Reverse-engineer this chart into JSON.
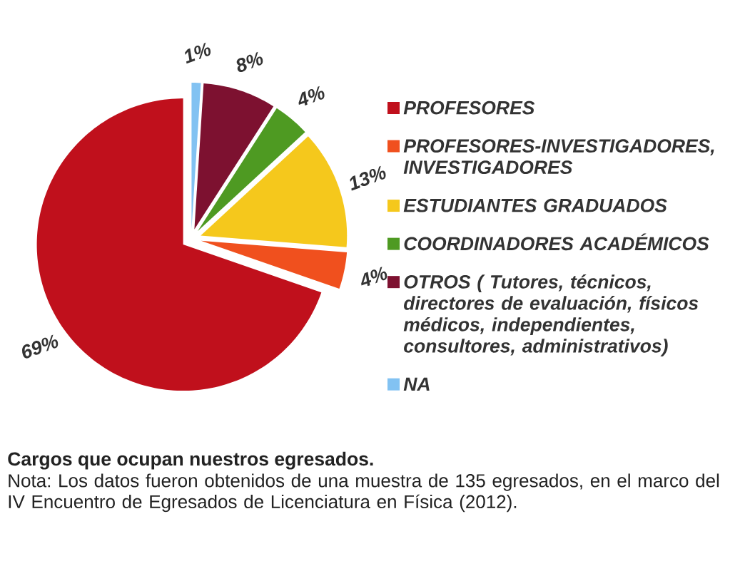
{
  "chart_data": {
    "type": "pie",
    "title": "Cargos que ocupan nuestros egresados.",
    "categories": [
      "PROFESORES",
      "PROFESORES-INVESTIGADORES, INVESTIGADORES",
      "ESTUDIANTES GRADUADOS",
      "COORDINADORES ACADÉMICOS",
      "OTROS ( Tutores, técnicos, directores de evaluación, físicos médicos, independientes, consultores, administrativos)",
      "NA"
    ],
    "values": [
      69,
      4,
      13,
      4,
      8,
      1
    ],
    "value_labels": [
      "69%",
      "4%",
      "13%",
      "4%",
      "8%",
      "1%"
    ],
    "colors": [
      "#c0101c",
      "#f0501e",
      "#f5c81c",
      "#4e9a22",
      "#7d1130",
      "#82c2f2"
    ],
    "legend": "right",
    "annotations": [
      "Nota: Los datos fueron obtenidos de una muestra de 135 egresados, en el marco del IV Encuentro de Egresados de Licenciatura en Física (2012)."
    ]
  }
}
